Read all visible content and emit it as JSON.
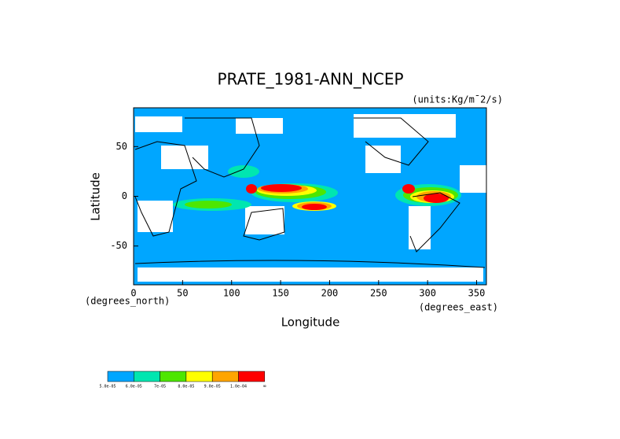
{
  "chart_data": {
    "type": "contour-map",
    "title": "PRATE_1981-ANN_NCEP",
    "units": "(units:Kg/m¯2/s)",
    "xlabel": "Longitude",
    "ylabel": "Latitude",
    "xunits": "(degrees_east)",
    "yunits": "(degrees_north)",
    "xlim": [
      0,
      360
    ],
    "xticks": [
      0,
      50,
      100,
      150,
      200,
      250,
      300,
      350
    ],
    "ylim": [
      -89,
      89
    ],
    "yticks": [
      -50,
      0,
      50
    ],
    "levels": [
      {
        "label": "5.0e-05",
        "color": "#00a6ff"
      },
      {
        "label": "6.0e-05",
        "color": "#00e6b0"
      },
      {
        "label": "7e-05",
        "color": "#4ee600"
      },
      {
        "label": "8.0e-05",
        "color": "#ffff00"
      },
      {
        "label": "9.0e-05",
        "color": "#ffa500"
      },
      {
        "label": "1.0e-04",
        "color": "#ff0000"
      }
    ],
    "last_label": "∞"
  }
}
